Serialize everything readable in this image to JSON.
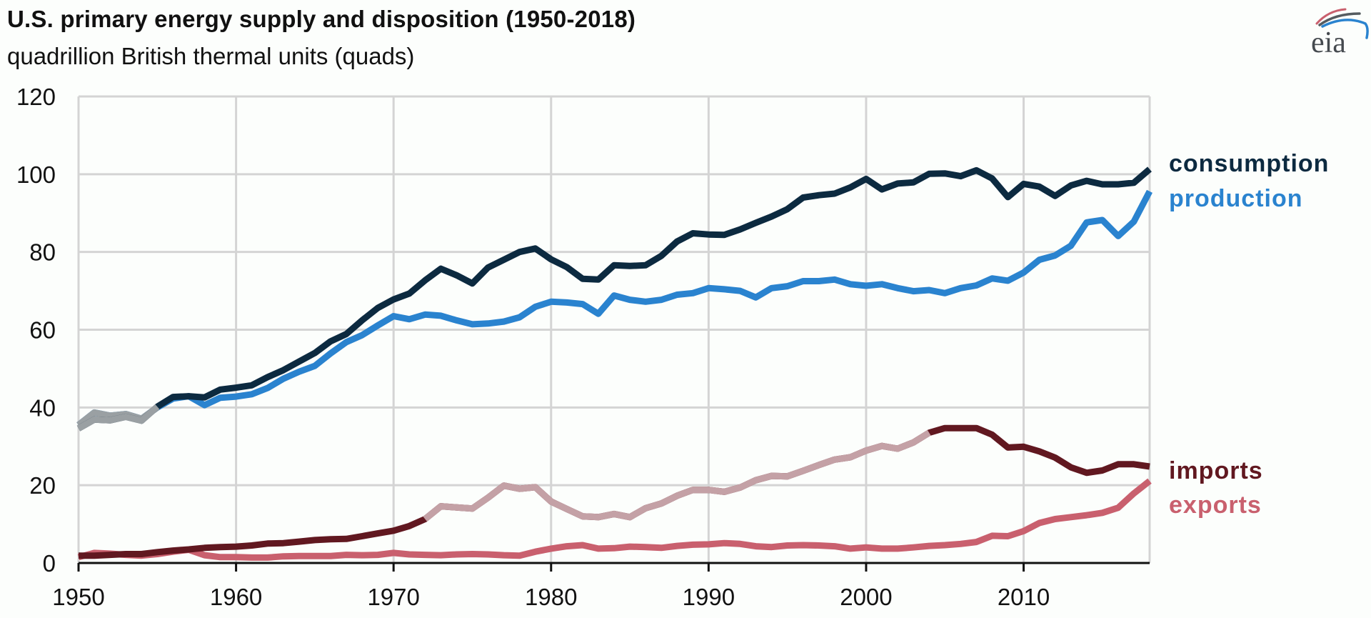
{
  "header": {
    "title": "U.S. primary energy supply and disposition (1950-2018)",
    "subtitle": "quadrillion British thermal units (quads)",
    "logo_text": "eia"
  },
  "colors": {
    "consumption": "#0c2a40",
    "production": "#2a83cf",
    "imports": "#611820",
    "exports": "#c9606e",
    "grid": "#d4d4d4",
    "axis": "#111111",
    "faded_imports": "#c4a1a6",
    "faded_gray": "#9aa0a3"
  },
  "chart_data": {
    "type": "line",
    "title": "U.S. primary energy supply and disposition (1950-2018)",
    "subtitle": "quadrillion British thermal units (quads)",
    "xlabel": "",
    "ylabel": "",
    "xlim": [
      1950,
      2018
    ],
    "ylim": [
      0,
      120
    ],
    "grid": true,
    "legend": "right (direct labels)",
    "x_ticks": [
      "1950",
      "1960",
      "1970",
      "1980",
      "1990",
      "2000",
      "2010"
    ],
    "y_ticks": [
      "0",
      "20",
      "40",
      "60",
      "80",
      "100",
      "120"
    ],
    "x_start": 1950,
    "series": [
      {
        "key": "consumption",
        "name": "consumption",
        "values": [
          34.6,
          36.9,
          36.7,
          37.6,
          36.6,
          40.2,
          42.7,
          42.9,
          42.6,
          44.6,
          45.1,
          45.7,
          47.8,
          49.6,
          51.8,
          54.0,
          57.0,
          58.9,
          62.4,
          65.6,
          67.8,
          69.3,
          72.7,
          75.7,
          74.0,
          71.9,
          76.0,
          78.0,
          80.0,
          80.9,
          78.1,
          76.1,
          73.1,
          72.9,
          76.6,
          76.4,
          76.6,
          79.0,
          82.7,
          84.8,
          84.5,
          84.4,
          85.8,
          87.5,
          89.1,
          91.0,
          94.0,
          94.6,
          95.0,
          96.6,
          98.8,
          96.1,
          97.6,
          97.9,
          100.1,
          100.2,
          99.5,
          101.0,
          98.9,
          94.1,
          97.5,
          96.8,
          94.4,
          97.1,
          98.3,
          97.4,
          97.4,
          97.8,
          101.3
        ]
      },
      {
        "key": "production",
        "name": "production",
        "values": [
          35.5,
          38.7,
          37.9,
          38.3,
          37.1,
          40.0,
          42.3,
          42.9,
          40.6,
          42.5,
          42.8,
          43.4,
          45.0,
          47.4,
          49.2,
          50.7,
          53.9,
          56.8,
          58.6,
          61.1,
          63.5,
          62.7,
          63.9,
          63.6,
          62.4,
          61.4,
          61.6,
          62.1,
          63.2,
          65.9,
          67.2,
          67.0,
          66.6,
          64.1,
          68.8,
          67.7,
          67.2,
          67.7,
          69.0,
          69.4,
          70.7,
          70.4,
          70.0,
          68.3,
          70.7,
          71.2,
          72.5,
          72.5,
          72.9,
          71.7,
          71.3,
          71.7,
          70.7,
          69.9,
          70.2,
          69.4,
          70.7,
          71.4,
          73.2,
          72.6,
          74.7,
          78.0,
          79.1,
          81.6,
          87.6,
          88.2,
          84.1,
          87.8,
          95.6
        ]
      },
      {
        "key": "imports",
        "name": "imports",
        "values": [
          1.9,
          1.9,
          2.1,
          2.3,
          2.3,
          2.8,
          3.2,
          3.5,
          3.9,
          4.1,
          4.2,
          4.5,
          5.0,
          5.1,
          5.5,
          5.9,
          6.1,
          6.2,
          6.9,
          7.6,
          8.3,
          9.5,
          11.3,
          14.6,
          14.3,
          14.0,
          16.8,
          19.9,
          19.1,
          19.5,
          15.8,
          13.9,
          12.0,
          11.8,
          12.6,
          11.8,
          14.1,
          15.3,
          17.3,
          18.8,
          18.8,
          18.3,
          19.4,
          21.3,
          22.4,
          22.3,
          23.7,
          25.2,
          26.6,
          27.2,
          28.9,
          30.1,
          29.4,
          31.0,
          33.5,
          34.7,
          34.7,
          34.7,
          33.0,
          29.7,
          29.9,
          28.7,
          27.1,
          24.6,
          23.2,
          23.8,
          25.4,
          25.4,
          24.8
        ]
      },
      {
        "key": "exports",
        "name": "exports",
        "values": [
          1.5,
          2.6,
          2.4,
          2.1,
          1.9,
          2.3,
          2.9,
          3.4,
          2.0,
          1.5,
          1.5,
          1.4,
          1.4,
          1.7,
          1.8,
          1.8,
          1.8,
          2.1,
          2.0,
          2.1,
          2.6,
          2.2,
          2.1,
          2.0,
          2.2,
          2.3,
          2.2,
          2.0,
          1.9,
          2.9,
          3.7,
          4.3,
          4.6,
          3.7,
          3.8,
          4.2,
          4.1,
          3.9,
          4.4,
          4.7,
          4.8,
          5.1,
          4.9,
          4.3,
          4.1,
          4.5,
          4.6,
          4.5,
          4.3,
          3.7,
          4.0,
          3.7,
          3.7,
          4.0,
          4.4,
          4.6,
          4.9,
          5.4,
          7.0,
          6.9,
          8.2,
          10.3,
          11.3,
          11.8,
          12.3,
          12.9,
          14.2,
          17.9,
          21.1
        ]
      }
    ]
  }
}
